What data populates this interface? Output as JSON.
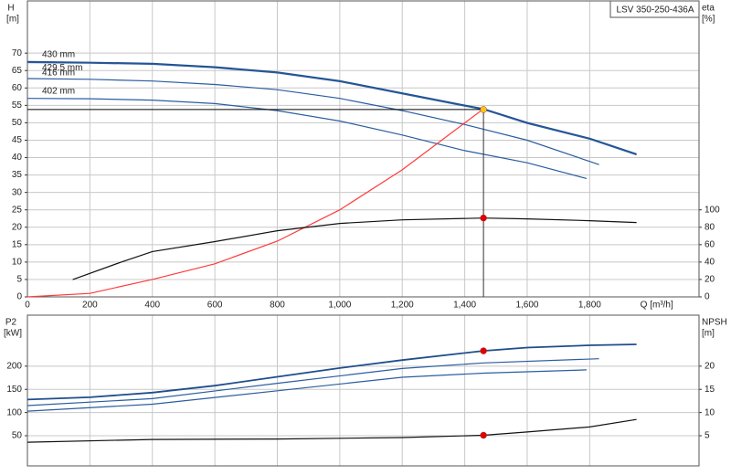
{
  "chart_data": [
    {
      "type": "line",
      "title": "LSV 350-250-436A",
      "ylabel": "H",
      "yunit": "[m]",
      "y2label": "eta",
      "y2unit": "[%]",
      "xlabel": "Q [m³/h]",
      "xlim": [
        0,
        2150
      ],
      "ylim": [
        0,
        85
      ],
      "y2lim": [
        0,
        340
      ],
      "grid": true,
      "xticks": [
        0,
        200,
        400,
        600,
        800,
        {
          "value": 1000,
          "label": "1,000"
        },
        {
          "value": 1200,
          "label": "1,200"
        },
        {
          "value": 1400,
          "label": "1,400"
        },
        {
          "value": 1600,
          "label": "1,600"
        },
        {
          "value": 1800,
          "label": "1,800"
        }
      ],
      "yticks": [
        0,
        5,
        10,
        15,
        20,
        25,
        30,
        35,
        40,
        45,
        50,
        55,
        60,
        65,
        70
      ],
      "y2ticks": [
        0,
        20,
        40,
        60,
        80,
        100
      ],
      "series": [
        {
          "name": "430 mm",
          "color": "#1f4e8c",
          "x": [
            0,
            200,
            400,
            600,
            800,
            1000,
            1200,
            1400,
            1460,
            1600,
            1800,
            1950
          ],
          "values": [
            67.5,
            67.3,
            67,
            66,
            64.5,
            62,
            58.5,
            55,
            54,
            50,
            45.5,
            41
          ]
        },
        {
          "name": "429.5 mm",
          "color": "#2a5d9f",
          "x": [
            0,
            200,
            400,
            600,
            800,
            1000,
            1200,
            1400,
            1460,
            1600,
            1800,
            1950
          ],
          "values": [
            67.3,
            67.1,
            66.8,
            65.8,
            64.3,
            61.8,
            58.3,
            54.8,
            53.8,
            49.8,
            45.3,
            40.8
          ]
        },
        {
          "name": "416 mm",
          "color": "#2a5d9f",
          "x": [
            0,
            200,
            400,
            600,
            800,
            1000,
            1200,
            1400,
            1600,
            1830
          ],
          "values": [
            62.7,
            62.5,
            62,
            61,
            59.5,
            57,
            53.5,
            49.5,
            45,
            38
          ]
        },
        {
          "name": "402 mm",
          "color": "#2a5d9f",
          "x": [
            0,
            200,
            400,
            600,
            800,
            1000,
            1200,
            1400,
            1600,
            1790
          ],
          "values": [
            57,
            56.9,
            56.5,
            55.5,
            53.5,
            50.5,
            46.5,
            42,
            38.5,
            34
          ]
        },
        {
          "color": "#ff3b3b",
          "x": [
            0,
            200,
            400,
            600,
            800,
            1000,
            1200,
            1460
          ],
          "values": [
            0,
            1,
            5,
            9.5,
            16,
            25,
            36.5,
            54
          ]
        },
        {
          "color": "#111111",
          "axis": "y2",
          "x": [
            145,
            300,
            400,
            600,
            800,
            1000,
            1200,
            1460,
            1600,
            1800,
            1950
          ],
          "values": [
            19.8,
            40,
            52,
            63.5,
            76,
            84.4,
            88.5,
            90.6,
            89.6,
            87.5,
            85.4
          ]
        }
      ],
      "points": [
        {
          "x": 1460,
          "y": 53.8,
          "color": "#f5c518",
          "guides": true
        },
        {
          "x": 1460,
          "y": 90.6,
          "color": "#e00000",
          "axis": "y2"
        }
      ]
    },
    {
      "type": "line",
      "ylabel": "P2",
      "yunit": "[kW]",
      "y2label": "NPSH",
      "y2unit": "[m]",
      "xlim": [
        0,
        2150
      ],
      "ylim": [
        -15,
        310
      ],
      "y2lim": [
        -1.5,
        31
      ],
      "grid": true,
      "yticks": [
        50,
        100,
        150,
        200
      ],
      "y2ticks": [
        5,
        10,
        15,
        20
      ],
      "series": [
        {
          "color": "#1f4e8c",
          "x": [
            0,
            200,
            400,
            600,
            800,
            1000,
            1200,
            1460,
            1600,
            1800,
            1950
          ],
          "values": [
            128,
            133,
            143,
            158,
            177,
            196,
            213,
            233,
            240,
            245,
            247
          ]
        },
        {
          "color": "#2a5d9f",
          "x": [
            0,
            400,
            800,
            1200,
            1460,
            1830
          ],
          "values": [
            115,
            130,
            163,
            195,
            207,
            216
          ]
        },
        {
          "color": "#2a5d9f",
          "x": [
            0,
            400,
            800,
            1200,
            1460,
            1790
          ],
          "values": [
            103,
            118,
            147,
            176,
            185,
            192
          ]
        },
        {
          "color": "#111111",
          "axis": "y2",
          "x": [
            0,
            400,
            800,
            1200,
            1460,
            1600,
            1800,
            1950
          ],
          "values": [
            3.6,
            4.2,
            4.3,
            4.6,
            5.1,
            5.8,
            6.9,
            8.5
          ]
        }
      ],
      "points": [
        {
          "x": 1460,
          "y": 233,
          "color": "#e00000"
        },
        {
          "x": 1460,
          "y": 5.1,
          "color": "#e00000",
          "axis": "y2"
        }
      ]
    }
  ]
}
